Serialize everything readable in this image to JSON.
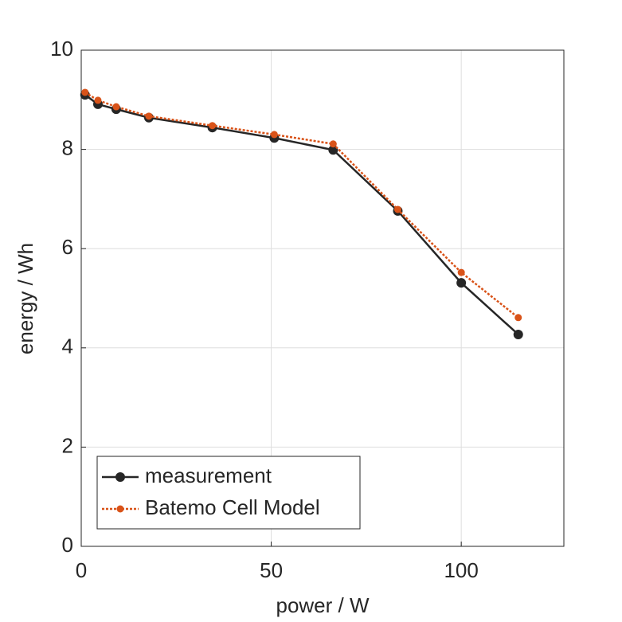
{
  "chart_data": {
    "type": "line",
    "x_label": "power / W",
    "y_label": "energy / Wh",
    "xlim": [
      0,
      127
    ],
    "xticks": [
      0,
      50,
      100
    ],
    "ylim": [
      0,
      10
    ],
    "yticks": [
      0,
      2,
      4,
      6,
      8,
      10
    ],
    "grid": true,
    "legend_position": "lower-left",
    "series": [
      {
        "name": "measurement",
        "color": "#262626",
        "line_style": "solid",
        "x": [
          1,
          4.4,
          9.2,
          17.8,
          34.5,
          50.8,
          66.3,
          83.3,
          100,
          115
        ],
        "values": [
          9.1,
          8.91,
          8.81,
          8.64,
          8.44,
          8.23,
          7.99,
          6.76,
          5.31,
          4.27
        ]
      },
      {
        "name": "Batemo Cell Model",
        "color": "#d95319",
        "line_style": "dotted",
        "x": [
          1,
          4.4,
          9.2,
          17.8,
          34.5,
          50.8,
          66.3,
          83.3,
          100,
          115
        ],
        "values": [
          9.15,
          8.99,
          8.86,
          8.67,
          8.48,
          8.3,
          8.11,
          6.79,
          5.52,
          4.61
        ]
      }
    ]
  }
}
